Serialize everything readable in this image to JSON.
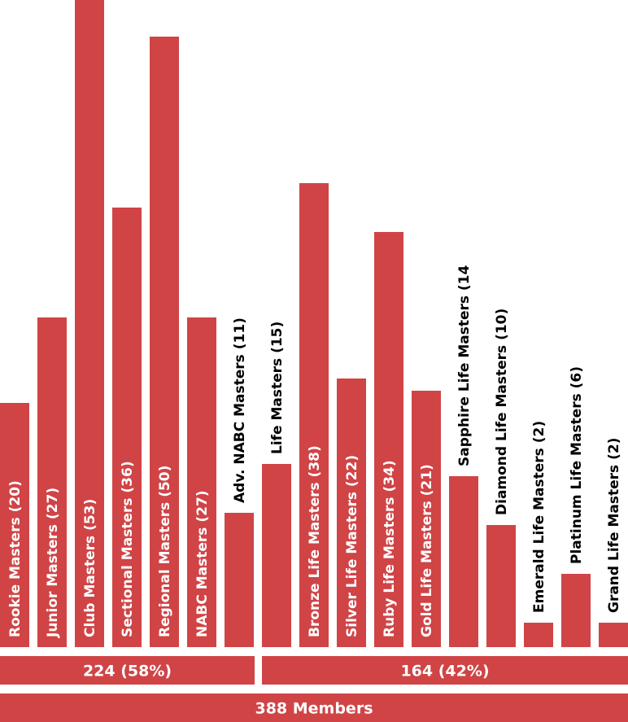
{
  "chart_data": {
    "type": "bar",
    "title": "",
    "xlabel": "",
    "ylabel": "",
    "ylim": [
      0,
      53
    ],
    "categories": [
      "Rookie Masters (20)",
      "Junior Masters (27)",
      "Club Masters (53)",
      "Sectional Masters (36)",
      "Regional Masters (50)",
      "NABC Masters (27)",
      "Adv. NABC Masters (11)",
      "Life Masters (15)",
      "Bronze Life Masters (38)",
      "Silver Life Masters (22)",
      "Ruby Life Masters (34)",
      "Gold Life Masters (21)",
      "Sapphire Life Masters (14",
      "Diamond Life Masters (10)",
      "Emerald Life Masters (2)",
      "Platinum Life Masters (6)",
      "Grand Life Masters (2)"
    ],
    "values": [
      20,
      27,
      53,
      36,
      50,
      27,
      11,
      15,
      38,
      22,
      34,
      21,
      14,
      10,
      2,
      6,
      2
    ],
    "bar_color": "#d04446",
    "label_inside_color": "#ffffff",
    "label_outside_color": "#000000",
    "groups": [
      {
        "label": "224 (58%)",
        "first": 0,
        "last": 6
      },
      {
        "label": "164 (42%)",
        "first": 7,
        "last": 16
      }
    ],
    "total_label": "388 Members"
  }
}
